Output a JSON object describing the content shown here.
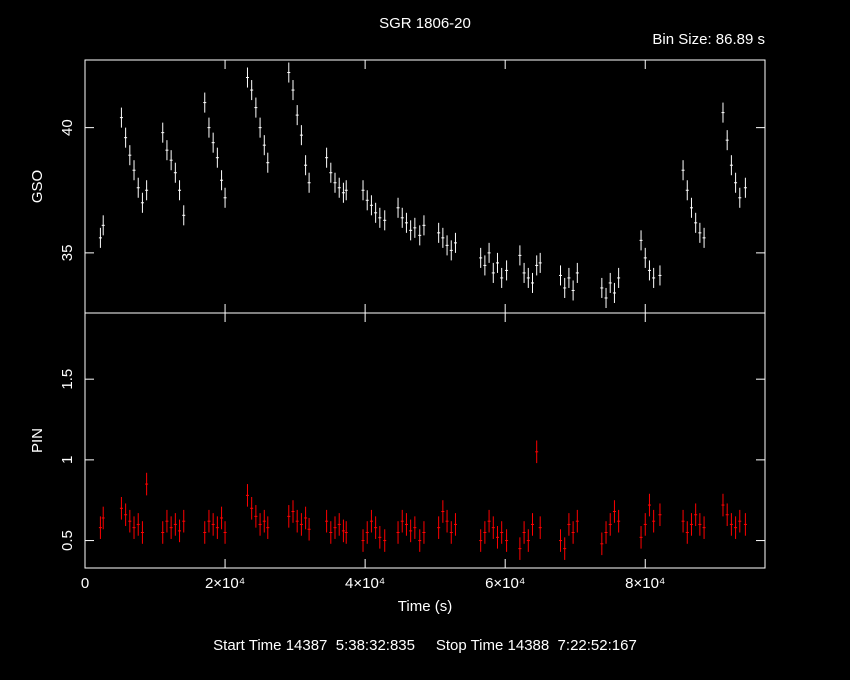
{
  "chart_data": {
    "type": "errorbar",
    "title": "SGR 1806-20",
    "subtitle": "Bin Size: 86.89 s",
    "xlabel": "Time (s)",
    "annotation": "Start Time 14387  5:38:32:835     Stop Time 14388  7:22:52:167",
    "xlim": [
      0,
      97100
    ],
    "xticks": [
      0,
      {
        "value": 20000,
        "label": "2×10⁴"
      },
      {
        "value": 40000,
        "label": "4×10⁴"
      },
      {
        "value": 60000,
        "label": "6×10⁴"
      },
      {
        "value": 80000,
        "label": "8×10⁴"
      }
    ],
    "x": [
      2200,
      2600,
      5200,
      5800,
      6400,
      7000,
      7600,
      8200,
      8800,
      11100,
      11700,
      12300,
      12900,
      13500,
      14100,
      17100,
      17700,
      18300,
      18900,
      19500,
      20000,
      23200,
      23800,
      24400,
      25000,
      25600,
      26100,
      29100,
      29700,
      30300,
      30900,
      31500,
      32000,
      34500,
      35100,
      35700,
      36300,
      36900,
      37300,
      39700,
      40300,
      40900,
      41500,
      42100,
      42800,
      44700,
      45300,
      45900,
      46500,
      47100,
      47800,
      48400,
      50500,
      51100,
      51700,
      52300,
      52900,
      56500,
      57100,
      57700,
      58300,
      58900,
      59500,
      60200,
      62100,
      62700,
      63300,
      63900,
      64500,
      65000,
      67900,
      68500,
      69100,
      69700,
      70300,
      73800,
      74400,
      75000,
      75600,
      76200,
      79400,
      80000,
      80600,
      81200,
      82100,
      85400,
      86000,
      86600,
      87200,
      87800,
      88400,
      91100,
      91700,
      92300,
      92900,
      93500,
      94300
    ],
    "panels": [
      {
        "ylabel": "GSO",
        "color": "#ffffff",
        "ylim": [
          32.6,
          42.7
        ],
        "yticks": [
          35,
          40
        ],
        "error": 0.4,
        "values": [
          35.6,
          36.1,
          40.4,
          39.6,
          38.9,
          38.3,
          37.6,
          37.0,
          37.5,
          39.8,
          39.1,
          38.7,
          38.2,
          37.5,
          36.5,
          41.0,
          40.0,
          39.4,
          38.8,
          37.9,
          37.2,
          42.0,
          41.5,
          40.8,
          40.0,
          39.3,
          38.6,
          42.2,
          41.5,
          40.5,
          39.7,
          38.5,
          37.8,
          38.8,
          38.2,
          37.8,
          37.6,
          37.4,
          37.5,
          37.5,
          37.1,
          36.9,
          36.6,
          36.4,
          36.3,
          36.8,
          36.4,
          36.2,
          35.9,
          36.0,
          35.7,
          36.1,
          35.8,
          35.6,
          35.3,
          35.1,
          35.4,
          34.8,
          34.5,
          35.0,
          34.2,
          34.6,
          34.0,
          34.3,
          34.9,
          34.2,
          34.0,
          33.8,
          34.5,
          34.6,
          34.1,
          33.6,
          34.0,
          33.5,
          34.2,
          33.6,
          33.2,
          33.8,
          33.4,
          34.0,
          35.5,
          34.8,
          34.3,
          34.0,
          34.1,
          38.3,
          37.5,
          36.8,
          36.2,
          35.8,
          35.6,
          40.6,
          39.5,
          38.5,
          37.8,
          37.2,
          37.6
        ]
      },
      {
        "ylabel": "PIN",
        "color": "#ff0000",
        "ylim": [
          0.33,
          1.91
        ],
        "yticks": [
          0.5,
          1,
          1.5
        ],
        "error": 0.07,
        "values": [
          0.58,
          0.64,
          0.7,
          0.66,
          0.62,
          0.58,
          0.6,
          0.55,
          0.85,
          0.55,
          0.62,
          0.58,
          0.6,
          0.56,
          0.62,
          0.55,
          0.62,
          0.6,
          0.58,
          0.64,
          0.55,
          0.78,
          0.7,
          0.65,
          0.6,
          0.62,
          0.58,
          0.65,
          0.68,
          0.62,
          0.6,
          0.64,
          0.57,
          0.62,
          0.55,
          0.58,
          0.6,
          0.56,
          0.55,
          0.5,
          0.55,
          0.62,
          0.58,
          0.52,
          0.5,
          0.55,
          0.62,
          0.6,
          0.56,
          0.58,
          0.5,
          0.55,
          0.58,
          0.68,
          0.62,
          0.55,
          0.6,
          0.5,
          0.55,
          0.62,
          0.58,
          0.52,
          0.55,
          0.5,
          0.45,
          0.55,
          0.5,
          0.6,
          1.05,
          0.58,
          0.5,
          0.45,
          0.6,
          0.55,
          0.62,
          0.48,
          0.55,
          0.6,
          0.68,
          0.62,
          0.52,
          0.6,
          0.72,
          0.62,
          0.66,
          0.62,
          0.55,
          0.6,
          0.66,
          0.6,
          0.58,
          0.72,
          0.66,
          0.6,
          0.58,
          0.62,
          0.6
        ]
      }
    ]
  }
}
